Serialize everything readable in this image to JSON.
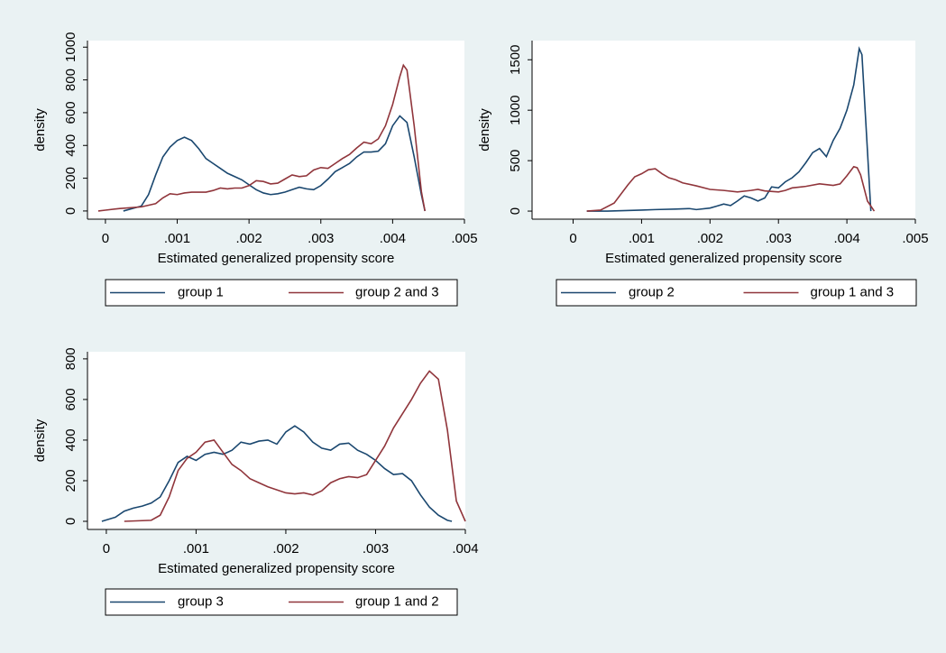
{
  "chart_data": [
    {
      "type": "line",
      "x_label": "Estimated generalized propensity score",
      "y_label": "density",
      "xlim": [
        -0.00025,
        0.005
      ],
      "ylim": [
        -50,
        1040
      ],
      "xticks": [
        0,
        {
          "value": 0.001,
          "label": ".001"
        },
        {
          "value": 0.002,
          "label": ".002"
        },
        {
          "value": 0.003,
          "label": ".003"
        },
        {
          "value": 0.004,
          "label": ".004"
        },
        {
          "value": 0.005,
          "label": ".005"
        }
      ],
      "yticks": [
        0,
        200,
        400,
        600,
        800,
        1000
      ],
      "legend": "bottom",
      "series": [
        {
          "name": "group 1",
          "color": "#1a476f",
          "x": [
            0.00025,
            0.0005,
            0.0006,
            0.0007,
            0.0008,
            0.0009,
            0.001,
            0.0011,
            0.0012,
            0.0013,
            0.0014,
            0.0015,
            0.0016,
            0.0017,
            0.0018,
            0.0019,
            0.002,
            0.0021,
            0.0022,
            0.0023,
            0.0024,
            0.0025,
            0.0026,
            0.0027,
            0.0028,
            0.0029,
            0.003,
            0.0031,
            0.0032,
            0.0033,
            0.0034,
            0.0035,
            0.0036,
            0.0037,
            0.0038,
            0.0039,
            0.004,
            0.0041,
            0.0042,
            0.0043,
            0.0044,
            0.00445
          ],
          "values": [
            0,
            30,
            100,
            220,
            330,
            390,
            430,
            450,
            430,
            380,
            320,
            290,
            260,
            230,
            210,
            190,
            160,
            130,
            110,
            100,
            105,
            115,
            130,
            145,
            135,
            130,
            155,
            195,
            240,
            265,
            290,
            330,
            360,
            360,
            365,
            410,
            520,
            580,
            540,
            330,
            100,
            0
          ]
        },
        {
          "name": "group 2 and 3",
          "color": "#90353b",
          "x": [
            -0.0001,
            0,
            0.0002,
            0.0005,
            0.0007,
            0.0008,
            0.0009,
            0.001,
            0.0011,
            0.0012,
            0.0014,
            0.0015,
            0.0016,
            0.0017,
            0.0018,
            0.0019,
            0.002,
            0.0021,
            0.0022,
            0.0023,
            0.0024,
            0.0025,
            0.0026,
            0.0027,
            0.0028,
            0.0029,
            0.003,
            0.0031,
            0.0032,
            0.0033,
            0.0034,
            0.0035,
            0.0036,
            0.0037,
            0.0038,
            0.0039,
            0.004,
            0.0041,
            0.00415,
            0.0042,
            0.0043,
            0.0044,
            0.00445
          ],
          "values": [
            0,
            5,
            15,
            25,
            45,
            80,
            105,
            100,
            110,
            115,
            115,
            125,
            140,
            135,
            140,
            140,
            155,
            185,
            180,
            165,
            170,
            195,
            220,
            210,
            215,
            250,
            265,
            260,
            290,
            320,
            345,
            385,
            420,
            410,
            440,
            520,
            650,
            820,
            890,
            860,
            520,
            120,
            0
          ]
        }
      ]
    },
    {
      "type": "line",
      "x_label": "Estimated generalized propensity score",
      "y_label": "density",
      "xlim": [
        -0.0006,
        0.005
      ],
      "ylim": [
        -80,
        1690
      ],
      "xticks": [
        0,
        {
          "value": 0.001,
          "label": ".001"
        },
        {
          "value": 0.002,
          "label": ".002"
        },
        {
          "value": 0.003,
          "label": ".003"
        },
        {
          "value": 0.004,
          "label": ".004"
        },
        {
          "value": 0.005,
          "label": ".005"
        }
      ],
      "yticks": [
        0,
        500,
        1000,
        1500
      ],
      "legend": "bottom",
      "series": [
        {
          "name": "group 2",
          "color": "#1a476f",
          "x": [
            0.0002,
            0.0005,
            0.001,
            0.0012,
            0.0015,
            0.0017,
            0.0018,
            0.002,
            0.0021,
            0.0022,
            0.0023,
            0.0024,
            0.0025,
            0.0026,
            0.0027,
            0.0028,
            0.0029,
            0.003,
            0.0031,
            0.0032,
            0.0033,
            0.0034,
            0.0035,
            0.0036,
            0.0037,
            0.0038,
            0.0039,
            0.004,
            0.0041,
            0.00418,
            0.00422,
            0.0043,
            0.00435
          ],
          "values": [
            0,
            0,
            10,
            15,
            20,
            25,
            15,
            30,
            50,
            70,
            55,
            100,
            150,
            130,
            100,
            130,
            240,
            230,
            290,
            330,
            390,
            480,
            580,
            620,
            540,
            700,
            820,
            1000,
            1250,
            1610,
            1550,
            600,
            0
          ]
        },
        {
          "name": "group 1 and 3",
          "color": "#90353b",
          "x": [
            0.0002,
            0.0004,
            0.0006,
            0.0008,
            0.0009,
            0.001,
            0.0011,
            0.0012,
            0.0013,
            0.0014,
            0.0015,
            0.0016,
            0.0018,
            0.002,
            0.0022,
            0.0024,
            0.0026,
            0.0027,
            0.0028,
            0.003,
            0.0031,
            0.0032,
            0.0034,
            0.0036,
            0.0038,
            0.0039,
            0.004,
            0.0041,
            0.00415,
            0.0042,
            0.0043,
            0.0044
          ],
          "values": [
            0,
            10,
            80,
            260,
            340,
            370,
            410,
            420,
            370,
            330,
            310,
            280,
            250,
            215,
            205,
            190,
            205,
            215,
            200,
            190,
            205,
            230,
            245,
            270,
            255,
            270,
            350,
            440,
            430,
            360,
            100,
            0
          ]
        }
      ]
    },
    {
      "type": "line",
      "x_label": "Estimated generalized propensity score",
      "y_label": "density",
      "xlim": [
        -0.00021,
        0.004
      ],
      "ylim": [
        -40,
        835
      ],
      "xticks": [
        0,
        {
          "value": 0.001,
          "label": ".001"
        },
        {
          "value": 0.002,
          "label": ".002"
        },
        {
          "value": 0.003,
          "label": ".003"
        },
        {
          "value": 0.004,
          "label": ".004"
        }
      ],
      "yticks": [
        0,
        200,
        400,
        600,
        800
      ],
      "legend": "bottom",
      "series": [
        {
          "name": "group 3",
          "color": "#1a476f",
          "x": [
            -5e-05,
            0.0001,
            0.0002,
            0.0003,
            0.0004,
            0.0005,
            0.0006,
            0.0007,
            0.0008,
            0.0009,
            0.001,
            0.0011,
            0.0012,
            0.0013,
            0.0014,
            0.0015,
            0.0016,
            0.0017,
            0.0018,
            0.0019,
            0.002,
            0.0021,
            0.0022,
            0.0023,
            0.0024,
            0.0025,
            0.0026,
            0.0027,
            0.0028,
            0.0029,
            0.003,
            0.0031,
            0.0032,
            0.0033,
            0.0034,
            0.0035,
            0.0036,
            0.0037,
            0.0038,
            0.00385
          ],
          "values": [
            0,
            20,
            50,
            65,
            75,
            90,
            120,
            200,
            290,
            320,
            300,
            330,
            340,
            330,
            350,
            390,
            380,
            395,
            400,
            380,
            440,
            470,
            440,
            390,
            360,
            350,
            380,
            385,
            350,
            330,
            300,
            260,
            230,
            235,
            200,
            130,
            70,
            30,
            5,
            0
          ]
        },
        {
          "name": "group 1 and 2",
          "color": "#90353b",
          "x": [
            0.0002,
            0.0005,
            0.0006,
            0.0007,
            0.0008,
            0.0009,
            0.001,
            0.0011,
            0.0012,
            0.0013,
            0.0014,
            0.0015,
            0.0016,
            0.0017,
            0.0018,
            0.0019,
            0.002,
            0.0021,
            0.0022,
            0.0023,
            0.0024,
            0.0025,
            0.0026,
            0.0027,
            0.0028,
            0.0029,
            0.003,
            0.0031,
            0.0032,
            0.0033,
            0.0034,
            0.0035,
            0.0036,
            0.0037,
            0.0038,
            0.0039,
            0.004
          ],
          "values": [
            0,
            5,
            30,
            120,
            250,
            310,
            340,
            390,
            400,
            340,
            280,
            250,
            210,
            190,
            170,
            155,
            140,
            135,
            140,
            130,
            150,
            190,
            210,
            220,
            215,
            230,
            300,
            370,
            460,
            530,
            600,
            680,
            740,
            700,
            450,
            100,
            0
          ]
        }
      ]
    }
  ]
}
